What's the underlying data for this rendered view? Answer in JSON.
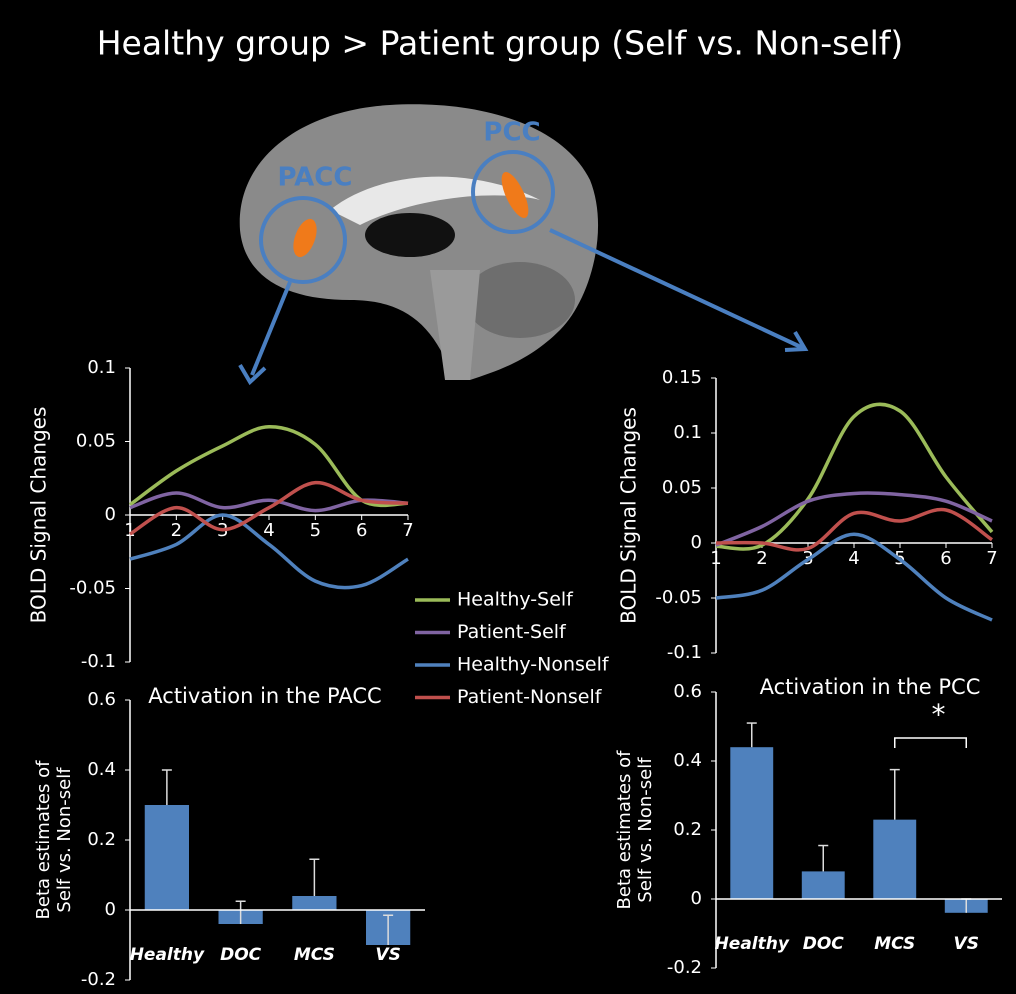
{
  "title": "Healthy group > Patient group (Self vs. Non-self)",
  "brain_labels": [
    "PACC",
    "PCC"
  ],
  "chart_data": [
    {
      "type": "line",
      "ylabel": "BOLD Signal Changes",
      "x": [
        1,
        2,
        3,
        4,
        5,
        6,
        7
      ],
      "xlim": [
        1,
        7
      ],
      "xticks": [
        1,
        2,
        3,
        4,
        5,
        6,
        7
      ],
      "ylim": [
        -0.1,
        0.1
      ],
      "yticks": [
        -0.1,
        -0.05,
        0,
        0.05,
        0.1
      ],
      "series": [
        {
          "name": "Healthy-Self",
          "color": "#9bbb59",
          "values": [
            0.007,
            0.03,
            0.047,
            0.06,
            0.048,
            0.01,
            0.008
          ]
        },
        {
          "name": "Patient-Self",
          "color": "#8064a2",
          "values": [
            0.005,
            0.015,
            0.005,
            0.01,
            0.003,
            0.01,
            0.008
          ]
        },
        {
          "name": "Healthy-Nonself",
          "color": "#4f81bd",
          "values": [
            -0.03,
            -0.02,
            0.0,
            -0.02,
            -0.045,
            -0.048,
            -0.03
          ]
        },
        {
          "name": "Patient-Nonself",
          "color": "#c0504d",
          "values": [
            -0.013,
            0.005,
            -0.01,
            0.005,
            0.022,
            0.01,
            0.008
          ]
        }
      ]
    },
    {
      "type": "line",
      "ylabel": "BOLD Signal Changes",
      "x": [
        1,
        2,
        3,
        4,
        5,
        6,
        7
      ],
      "xlim": [
        1,
        7
      ],
      "xticks": [
        1,
        2,
        3,
        4,
        5,
        6,
        7
      ],
      "ylim": [
        -0.1,
        0.15
      ],
      "yticks": [
        -0.1,
        -0.05,
        0,
        0.05,
        0.1,
        0.15
      ],
      "series": [
        {
          "color": "#9bbb59",
          "values": [
            -0.003,
            -0.002,
            0.04,
            0.115,
            0.12,
            0.06,
            0.01
          ]
        },
        {
          "color": "#8064a2",
          "values": [
            -0.002,
            0.015,
            0.038,
            0.045,
            0.044,
            0.038,
            0.02
          ]
        },
        {
          "color": "#4f81bd",
          "values": [
            -0.05,
            -0.043,
            -0.015,
            0.008,
            -0.015,
            -0.05,
            -0.07
          ]
        },
        {
          "color": "#c0504d",
          "values": [
            0.0,
            0.0,
            -0.005,
            0.027,
            0.02,
            0.03,
            0.003
          ]
        }
      ]
    },
    {
      "type": "bar",
      "title": "Activation in the PACC",
      "ylabel": [
        "Beta estimates of",
        "Self vs. Non-self"
      ],
      "categories": [
        "Healthy",
        "DOC",
        "MCS",
        "VS"
      ],
      "values": [
        0.3,
        -0.04,
        0.04,
        -0.1
      ],
      "errors": [
        0.1,
        0.065,
        0.105,
        0.085
      ],
      "color": "#4f81bd",
      "ylim": [
        -0.2,
        0.6
      ],
      "yticks": [
        -0.2,
        0,
        0.2,
        0.4,
        0.6
      ]
    },
    {
      "type": "bar",
      "title": "Activation in the PCC",
      "ylabel": [
        "Beta estimates of",
        "Self vs. Non-self"
      ],
      "categories": [
        "Healthy",
        "DOC",
        "MCS",
        "VS"
      ],
      "values": [
        0.44,
        0.08,
        0.23,
        -0.04
      ],
      "errors": [
        0.07,
        0.075,
        0.145,
        0.04
      ],
      "color": "#4f81bd",
      "ylim": [
        -0.2,
        0.6
      ],
      "yticks": [
        -0.2,
        0,
        0.2,
        0.4,
        0.6
      ],
      "annotation": "*"
    }
  ]
}
